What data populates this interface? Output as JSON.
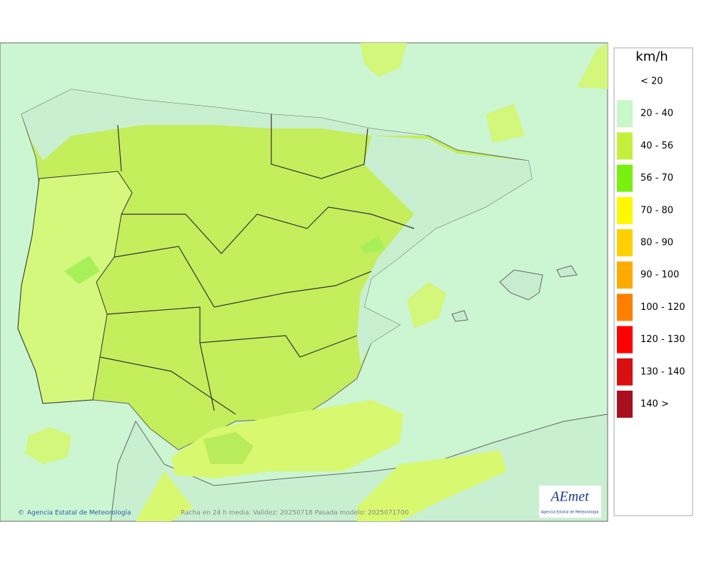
{
  "legend": {
    "title": "km/h",
    "items": [
      {
        "label": "< 20",
        "color": "#ffffff"
      },
      {
        "label": "20 - 40",
        "color": "#c8f7c8"
      },
      {
        "label": "40 - 56",
        "color": "#c4f03c"
      },
      {
        "label": "56 - 70",
        "color": "#78f010"
      },
      {
        "label": "70 - 80",
        "color": "#fff800"
      },
      {
        "label": "80 - 90",
        "color": "#ffd000"
      },
      {
        "label": "90 - 100",
        "color": "#ffaa00"
      },
      {
        "label": "100 - 120",
        "color": "#ff8000"
      },
      {
        "label": "120 - 130",
        "color": "#ff0000"
      },
      {
        "label": "130 - 140",
        "color": "#d81010"
      },
      {
        "label": "140 >",
        "color": "#a81020"
      }
    ]
  },
  "footer": {
    "credit": "Agencia Estatal de Meteorología",
    "caption": "Racha en 24 h media. Validez: 20250718 Pasada modelo: 2025071700"
  },
  "logo": {
    "name": "AEmet",
    "subtitle": "Agencia Estatal de Meteorología"
  }
}
